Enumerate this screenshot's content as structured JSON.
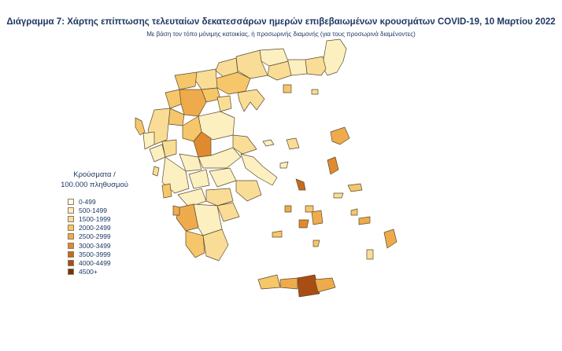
{
  "title": "Διάγραμμα 7: Χάρτης επίπτωσης τελευταίων δεκατεσσάρων ημερών επιβεβαιωμένων κρουσμάτων COVID-19, 10 Μαρτίου 2022",
  "subtitle": "Με βάση τον τόπο μόνιμης κατοικίας, ή προσωρινής διαμονής (για τους προσωρινά διαμένοντες)",
  "legend": {
    "title_line1": "Κρούσματα /",
    "title_line2": "100.000 πληθυσμού",
    "items": [
      {
        "label": "0-499",
        "color": "#fffbe6"
      },
      {
        "label": "500-1499",
        "color": "#fcefc0"
      },
      {
        "label": "1500-1999",
        "color": "#f9dd96"
      },
      {
        "label": "2000-2499",
        "color": "#f5c66a"
      },
      {
        "label": "2500-2999",
        "color": "#efab4b"
      },
      {
        "label": "3000-3499",
        "color": "#e08a2f"
      },
      {
        "label": "3500-3999",
        "color": "#c96a1e"
      },
      {
        "label": "4000-4499",
        "color": "#a84d14"
      },
      {
        "label": "4500+",
        "color": "#7a3008"
      }
    ]
  }
}
